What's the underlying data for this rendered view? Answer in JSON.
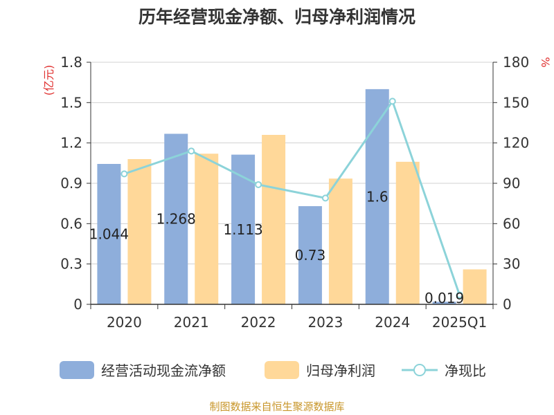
{
  "chart_data": {
    "type": "bar+line",
    "title": "历年经营现金净额、归母净利润情况",
    "categories": [
      "2020",
      "2021",
      "2022",
      "2023",
      "2024",
      "2025Q1"
    ],
    "series": [
      {
        "name": "经营活动现金流净额",
        "kind": "bar",
        "axis": "left",
        "color": "#8eaedb",
        "values": [
          1.044,
          1.268,
          1.113,
          0.73,
          1.6,
          0.019
        ],
        "labels": [
          "1.044",
          "1.268",
          "1.113",
          "0.73",
          "1.6",
          "0.019"
        ]
      },
      {
        "name": "归母净利润",
        "kind": "bar",
        "axis": "left",
        "color": "#ffd899",
        "values": [
          1.08,
          1.12,
          1.26,
          0.935,
          1.06,
          0.26
        ]
      },
      {
        "name": "净现比",
        "kind": "line",
        "axis": "right",
        "color": "#8cd3d9",
        "values": [
          97,
          114,
          89,
          79,
          151,
          7
        ]
      }
    ],
    "yleft": {
      "label": "(亿元)",
      "min": 0,
      "max": 1.8,
      "ticks": [
        "0",
        "0.3",
        "0.6",
        "0.9",
        "1.2",
        "1.5",
        "1.8"
      ]
    },
    "yright": {
      "label": "%",
      "min": 0,
      "max": 180,
      "ticks": [
        "0",
        "30",
        "60",
        "90",
        "120",
        "150",
        "180"
      ]
    },
    "grid": true,
    "legend_position": "bottom",
    "source": "制图数据来自恒生聚源数据库"
  }
}
